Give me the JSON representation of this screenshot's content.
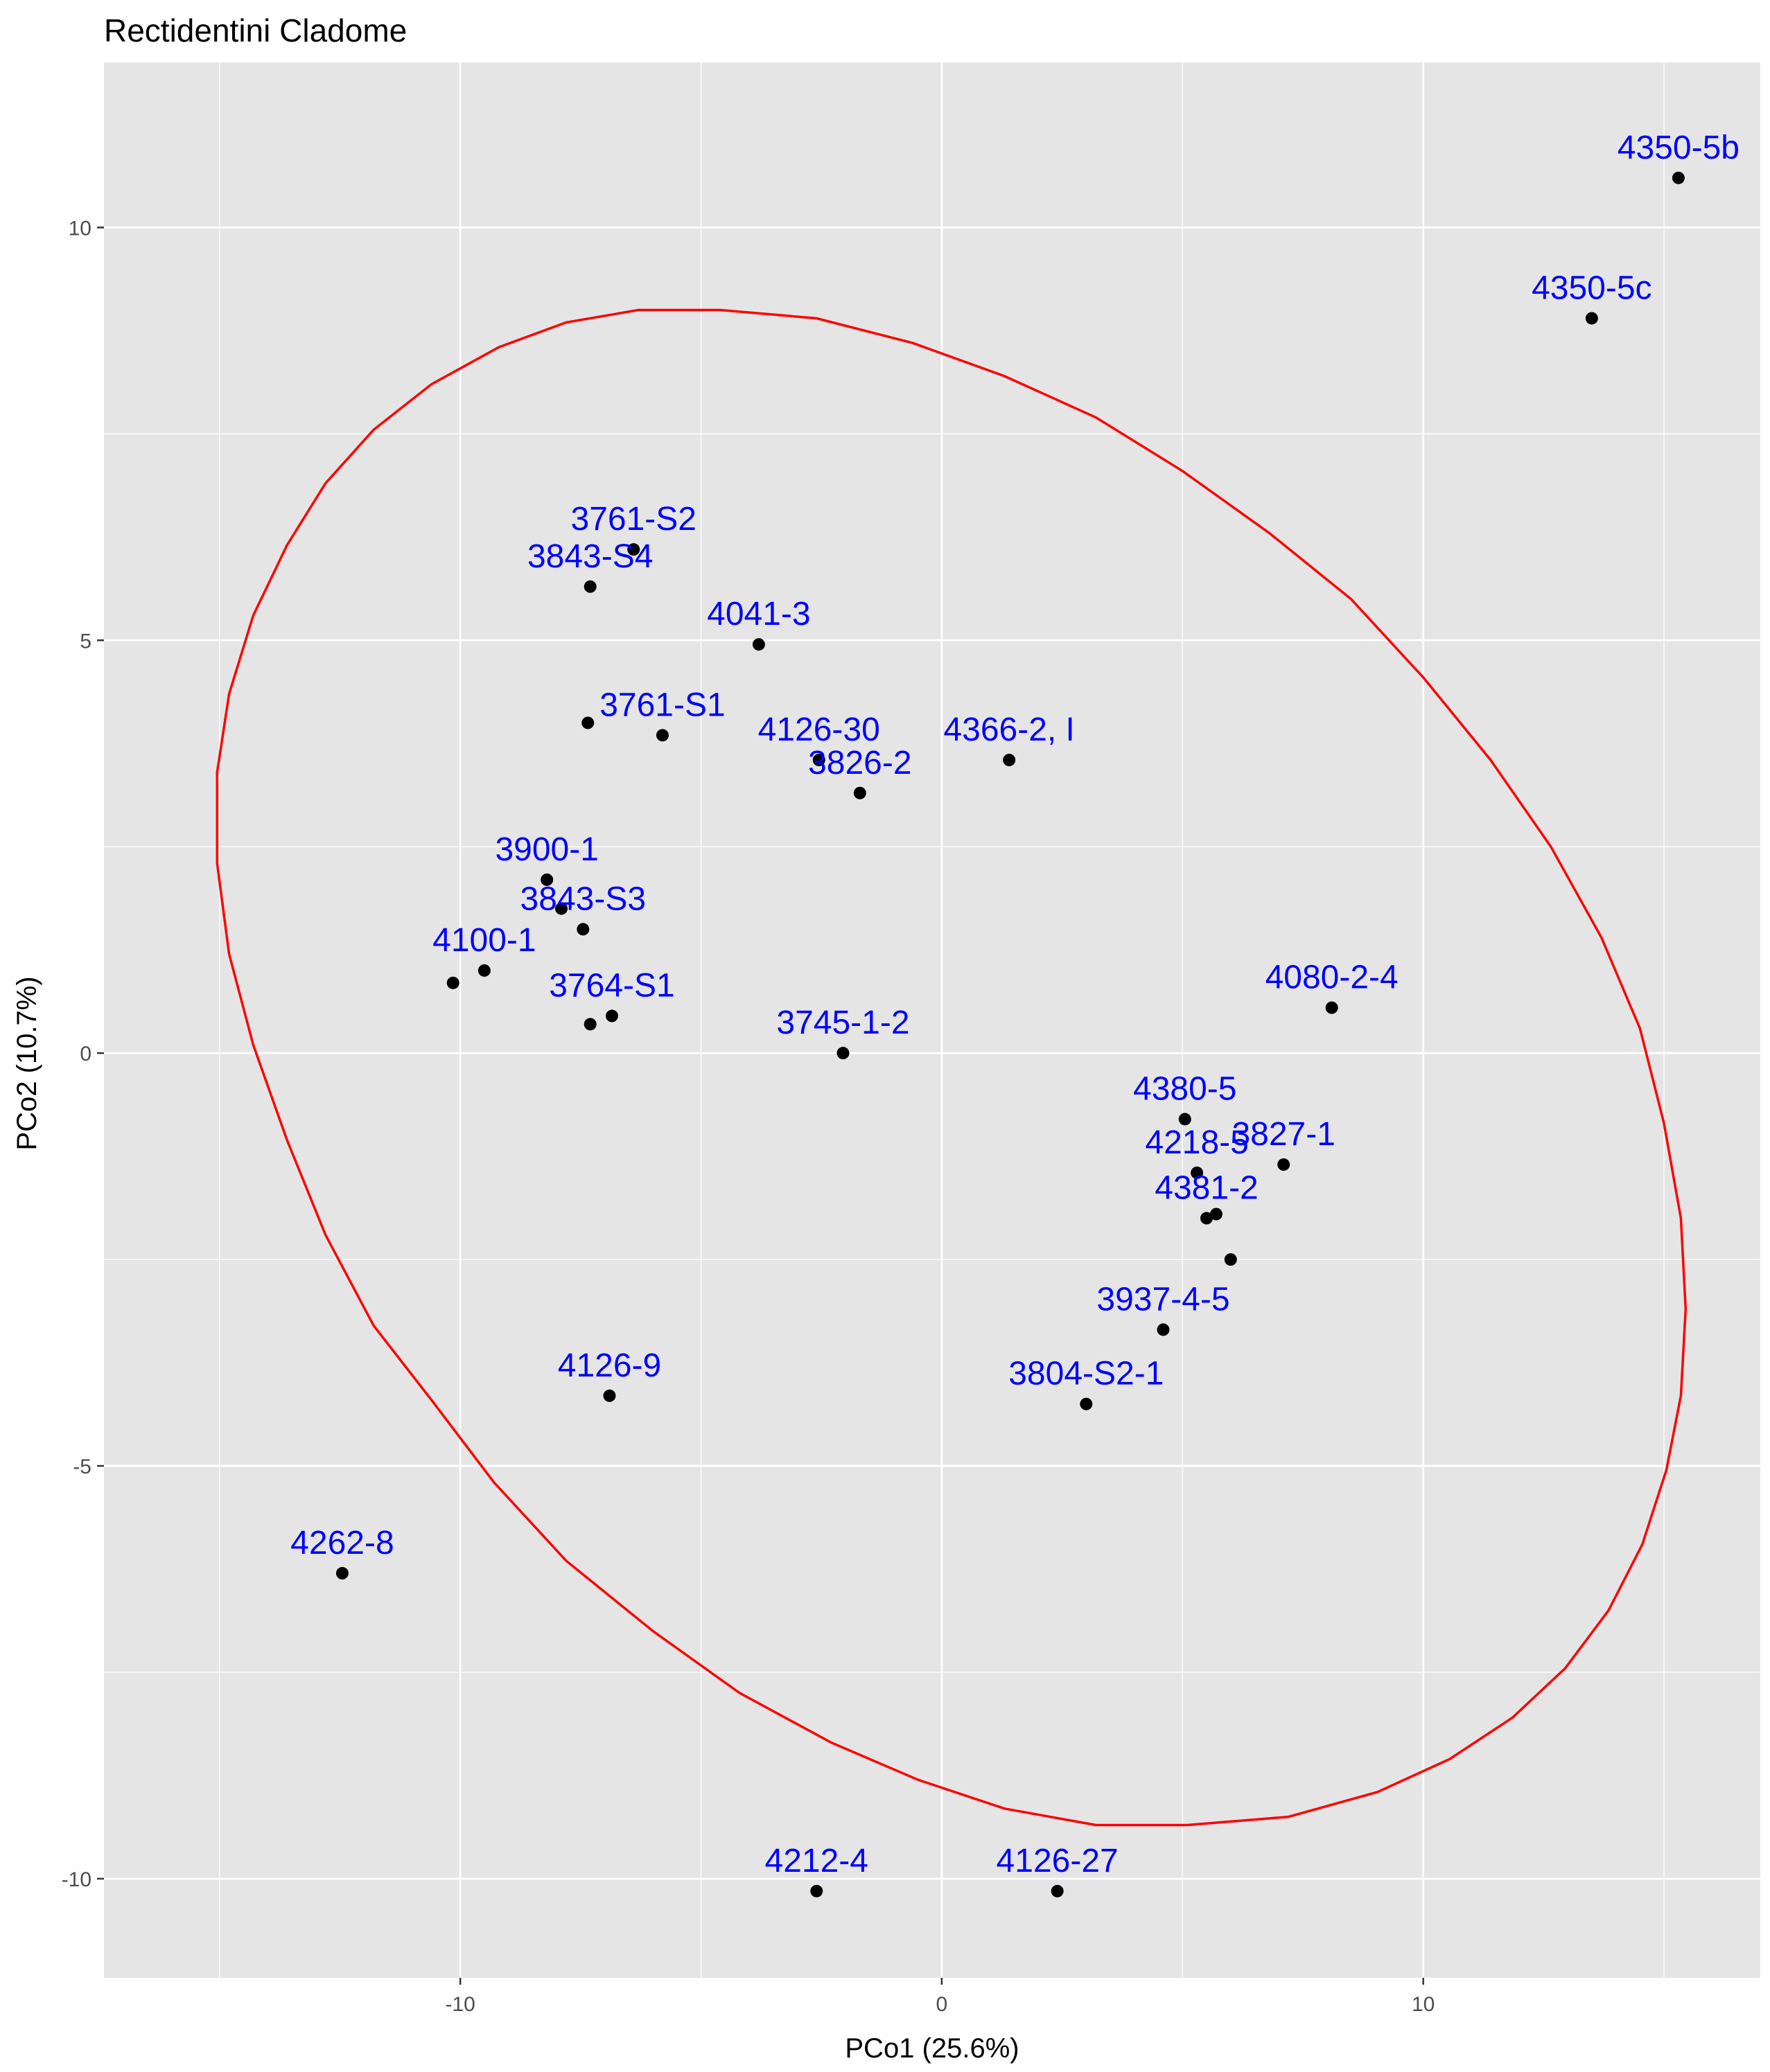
{
  "chart_data": {
    "type": "scatter",
    "title": "Rectidentini Cladome",
    "xlabel": "PCo1 (25.6%)",
    "ylabel": "PCo2 (10.7%)",
    "xlim": [
      -17.4,
      17.0
    ],
    "ylim": [
      -11.2,
      12.0
    ],
    "x_ticks": [
      -10,
      0,
      10
    ],
    "x_tick_labels": [
      "-10",
      "0",
      "10"
    ],
    "y_ticks": [
      -10,
      -5,
      0,
      5,
      10
    ],
    "y_tick_labels": [
      "-10",
      "-5",
      "0",
      "5",
      "10"
    ],
    "grid": true,
    "colors": {
      "panel_background": "#e5e5e5",
      "grid": "#ffffff",
      "point": "#000000",
      "label": "#0000ff",
      "ellipse": "#ff0000"
    },
    "points": [
      {
        "label": "4350-5b",
        "x": 15.3,
        "y": 10.6
      },
      {
        "label": "4350-5c",
        "x": 13.5,
        "y": 8.9
      },
      {
        "label": "3761-S2",
        "x": -6.4,
        "y": 6.1
      },
      {
        "label": "3843-S4",
        "x": -7.3,
        "y": 5.65
      },
      {
        "label": "4041-3",
        "x": -3.8,
        "y": 4.95
      },
      {
        "label": "3761-S1",
        "x": -5.8,
        "y": 3.85
      },
      {
        "label": "",
        "x": -7.35,
        "y": 4.0
      },
      {
        "label": "4126-30",
        "x": -2.55,
        "y": 3.55
      },
      {
        "label": "3826-2",
        "x": -1.7,
        "y": 3.15
      },
      {
        "label": "4366-2, I",
        "x": 1.4,
        "y": 3.55
      },
      {
        "label": "3900-1",
        "x": -8.2,
        "y": 2.1
      },
      {
        "label": "3843-S3",
        "x": -7.45,
        "y": 1.5
      },
      {
        "label": "",
        "x": -7.9,
        "y": 1.75
      },
      {
        "label": "4100-1",
        "x": -9.5,
        "y": 1.0
      },
      {
        "label": "",
        "x": -10.15,
        "y": 0.85
      },
      {
        "label": "3764-S1",
        "x": -6.85,
        "y": 0.45
      },
      {
        "label": "",
        "x": -7.3,
        "y": 0.35
      },
      {
        "label": "3745-1-2",
        "x": -2.05,
        "y": 0.0
      },
      {
        "label": "4080-2-4",
        "x": 8.1,
        "y": 0.55
      },
      {
        "label": "4380-5",
        "x": 5.05,
        "y": -0.8
      },
      {
        "label": "3827-1",
        "x": 7.1,
        "y": -1.35
      },
      {
        "label": "4218-5",
        "x": 5.3,
        "y": -1.45
      },
      {
        "label": "",
        "x": 5.7,
        "y": -1.95
      },
      {
        "label": "4381-2",
        "x": 5.5,
        "y": -2.0
      },
      {
        "label": "",
        "x": 6.0,
        "y": -2.5
      },
      {
        "label": "3937-4-5",
        "x": 4.6,
        "y": -3.35
      },
      {
        "label": "3804-S2-1",
        "x": 3.0,
        "y": -4.25
      },
      {
        "label": "4126-9",
        "x": -6.9,
        "y": -4.15
      },
      {
        "label": "4262-8",
        "x": -12.45,
        "y": -6.3
      },
      {
        "label": "4212-4",
        "x": -2.6,
        "y": -10.15
      },
      {
        "label": "4126-27",
        "x": 2.4,
        "y": -10.15
      }
    ],
    "ellipse": [
      [
        -4.6,
        9.0
      ],
      [
        -2.6,
        8.9
      ],
      [
        -0.6,
        8.6
      ],
      [
        1.3,
        8.2
      ],
      [
        3.2,
        7.7
      ],
      [
        5.0,
        7.05
      ],
      [
        6.8,
        6.3
      ],
      [
        8.5,
        5.5
      ],
      [
        10.0,
        4.55
      ],
      [
        11.4,
        3.55
      ],
      [
        12.65,
        2.5
      ],
      [
        13.7,
        1.4
      ],
      [
        14.5,
        0.3
      ],
      [
        15.0,
        -0.85
      ],
      [
        15.35,
        -2.0
      ],
      [
        15.45,
        -3.1
      ],
      [
        15.35,
        -4.15
      ],
      [
        15.05,
        -5.05
      ],
      [
        14.55,
        -5.95
      ],
      [
        13.85,
        -6.75
      ],
      [
        12.95,
        -7.45
      ],
      [
        11.85,
        -8.05
      ],
      [
        10.55,
        -8.55
      ],
      [
        9.05,
        -8.95
      ],
      [
        7.2,
        -9.25
      ],
      [
        5.1,
        -9.35
      ],
      [
        3.2,
        -9.35
      ],
      [
        1.3,
        -9.15
      ],
      [
        -0.5,
        -8.8
      ],
      [
        -2.3,
        -8.35
      ],
      [
        -4.2,
        -7.75
      ],
      [
        -6.0,
        -7.0
      ],
      [
        -7.8,
        -6.15
      ],
      [
        -9.3,
        -5.2
      ],
      [
        -10.6,
        -4.2
      ],
      [
        -11.8,
        -3.3
      ],
      [
        -12.8,
        -2.2
      ],
      [
        -13.6,
        -1.05
      ],
      [
        -14.3,
        0.1
      ],
      [
        -14.8,
        1.2
      ],
      [
        -15.05,
        2.3
      ],
      [
        -15.05,
        3.4
      ],
      [
        -14.8,
        4.35
      ],
      [
        -14.3,
        5.3
      ],
      [
        -13.6,
        6.15
      ],
      [
        -12.8,
        6.9
      ],
      [
        -11.8,
        7.55
      ],
      [
        -10.6,
        8.1
      ],
      [
        -9.2,
        8.55
      ],
      [
        -7.8,
        8.85
      ],
      [
        -6.3,
        9.0
      ]
    ]
  }
}
